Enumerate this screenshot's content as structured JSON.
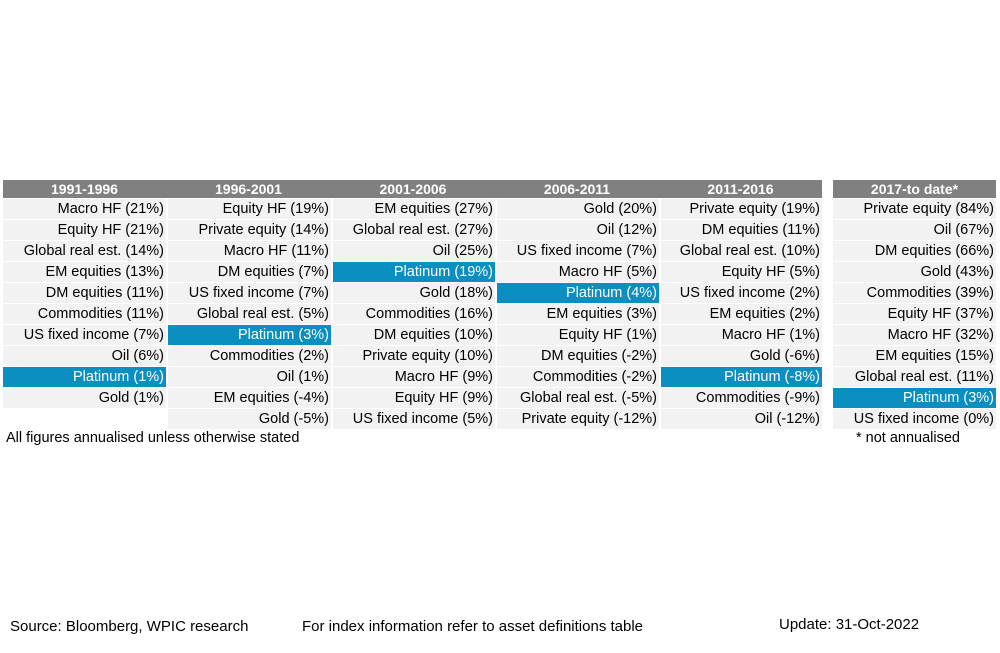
{
  "main_table": {
    "headers": [
      "1991-1996",
      "1996-2001",
      "2001-2006",
      "2006-2011",
      "2011-2016"
    ],
    "rows": [
      [
        "Macro HF (21%)",
        "Equity HF (19%)",
        "EM equities (27%)",
        "Gold (20%)",
        "Private equity (19%)"
      ],
      [
        "Equity HF (21%)",
        "Private equity (14%)",
        "Global real est. (27%)",
        "Oil (12%)",
        "DM equities (11%)"
      ],
      [
        "Global real est. (14%)",
        "Macro HF (11%)",
        "Oil (25%)",
        "US fixed income (7%)",
        "Global real est. (10%)"
      ],
      [
        "EM equities (13%)",
        "DM equities (7%)",
        "Platinum (19%)",
        "Macro HF (5%)",
        "Equity HF (5%)"
      ],
      [
        "DM equities (11%)",
        "US fixed income (7%)",
        "Gold (18%)",
        "Platinum (4%)",
        "US fixed income (2%)"
      ],
      [
        "Commodities (11%)",
        "Global real est. (5%)",
        "Commodities (16%)",
        "EM equities (3%)",
        "EM equities (2%)"
      ],
      [
        "US fixed income (7%)",
        "Platinum (3%)",
        "DM equities (10%)",
        "Equity HF (1%)",
        "Macro HF (1%)"
      ],
      [
        "Oil (6%)",
        "Commodities (2%)",
        "Private equity (10%)",
        "DM equities (-2%)",
        "Gold (-6%)"
      ],
      [
        "Platinum (1%)",
        "Oil (1%)",
        "Macro HF (9%)",
        "Commodities (-2%)",
        "Platinum (-8%)"
      ],
      [
        "Gold (1%)",
        "EM equities (-4%)",
        "Equity HF (9%)",
        "Global real est. (-5%)",
        "Commodities (-9%)"
      ],
      [
        "",
        "Gold (-5%)",
        "US fixed income (5%)",
        "Private equity (-12%)",
        "Oil (-12%)"
      ]
    ],
    "highlight": "Platinum",
    "note": "All figures annualised unless otherwise stated"
  },
  "side_table": {
    "header": "2017-to date*",
    "rows": [
      "Private equity (84%)",
      "Oil (67%)",
      "DM equities (66%)",
      "Gold (43%)",
      "Commodities (39%)",
      "Equity HF (37%)",
      "Macro HF (32%)",
      "EM equities (15%)",
      "Global real est. (11%)",
      "Platinum (3%)",
      "US fixed income (0%)"
    ],
    "note": "* not annualised"
  },
  "footer": {
    "source": "Source: Bloomberg, WPIC research",
    "index_info": "For index information refer to asset definitions table",
    "update": "Update: 31-Oct-2022"
  },
  "colors": {
    "header_bg": "#808080",
    "cell_bg": "#f2f2f2",
    "highlight_bg": "#0a8fc0"
  }
}
